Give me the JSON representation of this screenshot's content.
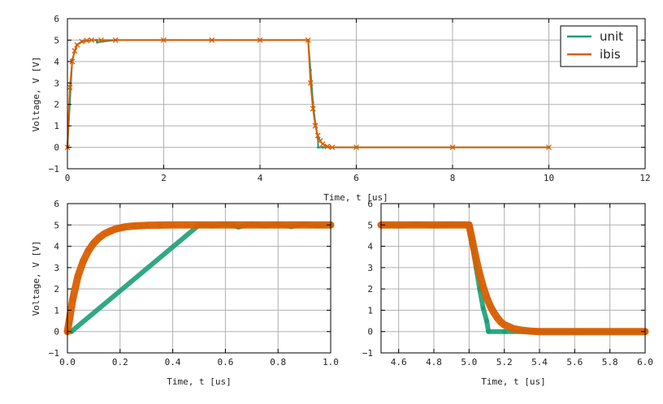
{
  "chart_data": [
    {
      "id": "top",
      "type": "line",
      "title": "",
      "xlabel": "Time, t [us]",
      "ylabel": "Voltage, V [V]",
      "xlim": [
        0,
        12
      ],
      "ylim": [
        -1,
        6
      ],
      "xticks": [
        0,
        2,
        4,
        6,
        8,
        10,
        12
      ],
      "yticks": [
        -1,
        0,
        1,
        2,
        3,
        4,
        5,
        6
      ],
      "xtick_labels": [
        "0",
        "2",
        "4",
        "6",
        "8",
        "10",
        "12"
      ],
      "ytick_labels": [
        "−1",
        "0",
        "1",
        "2",
        "3",
        "4",
        "5",
        "6"
      ],
      "grid": true,
      "legend": {
        "position": "top-right",
        "entries": [
          "unit",
          "ibis"
        ]
      },
      "series": [
        {
          "name": "unit",
          "color": "#1b9e77",
          "marker": "o",
          "x": [
            0,
            0.1,
            0.2,
            0.3,
            0.4,
            0.6,
            0.62,
            1.0,
            2.0,
            3.0,
            4.0,
            5.0,
            5.05,
            5.1,
            5.15,
            5.2,
            5.21,
            5.3,
            6,
            8,
            10
          ],
          "y": [
            0,
            4.1,
            4.78,
            4.93,
            4.98,
            5.0,
            4.9,
            5.0,
            5.0,
            5.0,
            5.0,
            5.0,
            3.6,
            2.1,
            1.1,
            0.45,
            0.0,
            0.0,
            0.0,
            0.0,
            0.0
          ]
        },
        {
          "name": "ibis",
          "color": "#d95f02",
          "marker": "x",
          "x": [
            0,
            0.05,
            0.1,
            0.15,
            0.2,
            0.3,
            0.4,
            0.5,
            0.7,
            1.0,
            2.0,
            3.0,
            4.0,
            5.0,
            5.05,
            5.1,
            5.15,
            5.2,
            5.25,
            5.3,
            5.4,
            5.5,
            6,
            8,
            10
          ],
          "y": [
            0,
            2.8,
            4.0,
            4.5,
            4.78,
            4.93,
            4.98,
            5.0,
            5.0,
            5.0,
            5.0,
            5.0,
            5.0,
            5.0,
            3.0,
            1.8,
            1.0,
            0.55,
            0.3,
            0.15,
            0.04,
            0.0,
            0.0,
            0.0,
            0.0
          ]
        }
      ]
    },
    {
      "id": "bottom-left",
      "type": "line",
      "title": "",
      "xlabel": "Time, t [us]",
      "ylabel": "Voltage, V [V]",
      "xlim": [
        0,
        1.0
      ],
      "ylim": [
        -1,
        6
      ],
      "xticks": [
        0,
        0.2,
        0.4,
        0.6,
        0.8,
        1.0
      ],
      "yticks": [
        -1,
        0,
        1,
        2,
        3,
        4,
        5,
        6
      ],
      "xtick_labels": [
        "0.0",
        "0.2",
        "0.4",
        "0.6",
        "0.8",
        "1.0"
      ],
      "ytick_labels": [
        "−1",
        "0",
        "1",
        "2",
        "3",
        "4",
        "5",
        "6"
      ],
      "grid": true,
      "series": [
        {
          "name": "unit",
          "color": "#1b9e77",
          "marker": "o",
          "x": [
            0,
            0.01,
            0.015,
            0.5,
            0.52,
            0.55,
            0.6,
            0.65,
            0.7,
            0.75,
            0.8,
            0.85,
            0.9,
            0.95,
            1.0
          ],
          "y": [
            0,
            0,
            0,
            5.0,
            5.0,
            4.95,
            5.05,
            4.9,
            5.05,
            4.95,
            5.05,
            4.92,
            5.05,
            4.95,
            5.0
          ]
        },
        {
          "name": "ibis",
          "color": "#d95f02",
          "marker": "x",
          "x": [
            0,
            0.02,
            0.04,
            0.06,
            0.08,
            0.1,
            0.12,
            0.14,
            0.16,
            0.18,
            0.2,
            0.22,
            0.25,
            0.28,
            0.3,
            0.35,
            0.4,
            0.45,
            0.5,
            1.0
          ],
          "y": [
            0,
            1.5,
            2.6,
            3.3,
            3.8,
            4.15,
            4.4,
            4.58,
            4.7,
            4.8,
            4.86,
            4.91,
            4.95,
            4.97,
            4.98,
            4.99,
            5.0,
            5.0,
            5.0,
            5.0
          ]
        }
      ]
    },
    {
      "id": "bottom-right",
      "type": "line",
      "title": "",
      "xlabel": "Time, t [us]",
      "ylabel": "",
      "xlim": [
        4.5,
        6.0
      ],
      "ylim": [
        -1,
        6
      ],
      "xticks": [
        4.6,
        4.8,
        5.0,
        5.2,
        5.4,
        5.6,
        5.8,
        6.0
      ],
      "yticks": [
        -1,
        0,
        1,
        2,
        3,
        4,
        5,
        6
      ],
      "xtick_labels": [
        "4.6",
        "4.8",
        "5.0",
        "5.2",
        "5.4",
        "5.6",
        "5.8",
        "6.0"
      ],
      "ytick_labels": [
        "−1",
        "0",
        "1",
        "2",
        "3",
        "4",
        "5",
        "6"
      ],
      "grid": true,
      "series": [
        {
          "name": "unit",
          "color": "#1b9e77",
          "marker": "o",
          "x": [
            4.5,
            4.6,
            4.7,
            4.8,
            4.9,
            5.0,
            5.02,
            5.04,
            5.06,
            5.08,
            5.1,
            5.11,
            5.2,
            5.4,
            5.6,
            5.8,
            6.0
          ],
          "y": [
            5.0,
            4.95,
            5.05,
            4.95,
            5.05,
            5.0,
            4.0,
            3.0,
            2.0,
            1.1,
            0.5,
            0.0,
            0.0,
            0.0,
            0.0,
            0.0,
            0.0
          ]
        },
        {
          "name": "ibis",
          "color": "#d95f02",
          "marker": "x",
          "x": [
            4.5,
            4.7,
            4.9,
            5.0,
            5.02,
            5.04,
            5.06,
            5.08,
            5.1,
            5.12,
            5.14,
            5.16,
            5.18,
            5.2,
            5.25,
            5.3,
            5.35,
            5.4,
            5.6,
            6.0
          ],
          "y": [
            5.0,
            5.0,
            5.0,
            5.0,
            4.2,
            3.4,
            2.7,
            2.1,
            1.6,
            1.2,
            0.9,
            0.65,
            0.45,
            0.32,
            0.14,
            0.06,
            0.02,
            0.0,
            0.0,
            0.0
          ]
        }
      ]
    }
  ],
  "legend_colors": {
    "unit": "#1b9e77",
    "ibis": "#d95f02"
  }
}
